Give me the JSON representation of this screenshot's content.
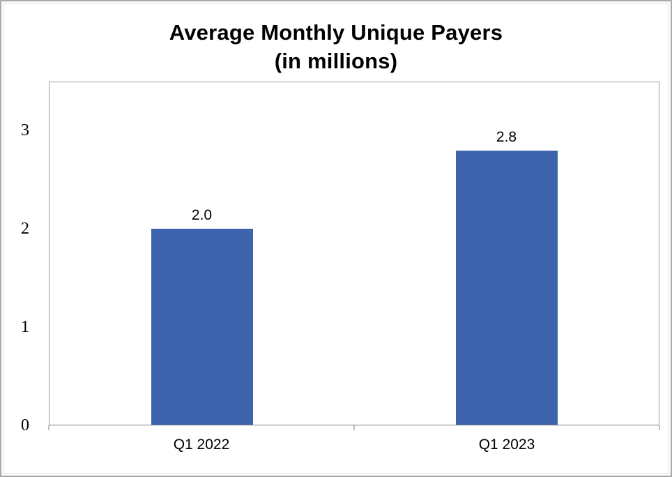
{
  "title": {
    "line1": "Average Monthly Unique Payers",
    "line2": "(in millions)"
  },
  "chart_data": {
    "type": "bar",
    "title": "Average Monthly Unique Payers (in millions)",
    "categories": [
      "Q1 2022",
      "Q1 2023"
    ],
    "values": [
      2.0,
      2.8
    ],
    "value_labels": [
      "2.0",
      "2.8"
    ],
    "xlabel": "",
    "ylabel": "",
    "ylim": [
      0,
      3.5
    ],
    "yticks": [
      0,
      1,
      2,
      3
    ],
    "grid": false,
    "legend": false,
    "bar_color": "#3d64ad"
  },
  "colors": {
    "bar": "#3d64ad",
    "plot_border": "#9a9a9a",
    "axis_line": "#808080",
    "frame_border": "#a9a9a9",
    "text": "#000000"
  }
}
